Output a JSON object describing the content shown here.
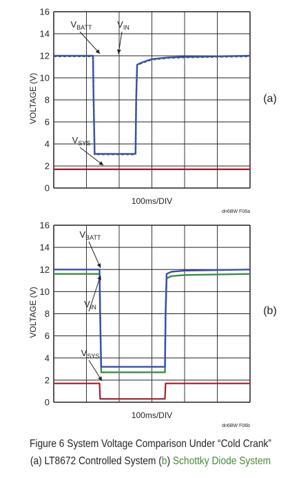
{
  "colors": {
    "vbatt": "#3b4ea8",
    "vin": "#3a8d3f",
    "vsys": "#a01f2a",
    "grid": "#231f20",
    "caption_green": "#4a8a3a"
  },
  "chart_data": [
    {
      "panel": "(a)",
      "type": "line",
      "xlabel": "100ms/DIV",
      "ylabel": "VOLTAGE (V)",
      "ylim": [
        0,
        16
      ],
      "yticks": [
        "0",
        "2",
        "4",
        "6",
        "8",
        "10",
        "12",
        "14",
        "16"
      ],
      "x_divisions": 6,
      "grid": true,
      "note": "dn6BW F06a",
      "annotations": [
        {
          "main": "V",
          "sub": "BATT",
          "target": "VBATT"
        },
        {
          "main": "V",
          "sub": "IN",
          "target": "VIN"
        },
        {
          "main": "V",
          "sub": "SYS",
          "target": "VSYS"
        }
      ],
      "series": [
        {
          "name": "VBATT",
          "x": [
            0,
            1.2,
            1.22,
            1.25,
            2.5,
            2.52,
            2.55,
            2.7,
            3.0,
            3.5,
            4.0,
            6.0
          ],
          "y": [
            12,
            12,
            8,
            3.1,
            3.1,
            8,
            11.2,
            11.4,
            11.7,
            11.85,
            11.9,
            12
          ]
        },
        {
          "name": "VIN",
          "x": [
            0,
            1.2,
            1.22,
            1.25,
            2.5,
            2.52,
            2.55,
            2.7,
            3.0,
            3.5,
            4.0,
            6.0
          ],
          "y": [
            11.95,
            11.95,
            8,
            3.05,
            3.05,
            8,
            11.15,
            11.35,
            11.65,
            11.8,
            11.85,
            11.95
          ]
        },
        {
          "name": "VSYS",
          "x": [
            0,
            6
          ],
          "y": [
            1.7,
            1.7
          ]
        }
      ]
    },
    {
      "panel": "(b)",
      "type": "line",
      "xlabel": "100ms/DIV",
      "ylabel": "VOLTAGE (V)",
      "ylim": [
        0,
        16
      ],
      "yticks": [
        "0",
        "2",
        "4",
        "6",
        "8",
        "10",
        "12",
        "14",
        "16"
      ],
      "x_divisions": 6,
      "grid": true,
      "note": "dn6BW F06b",
      "annotations": [
        {
          "main": "V",
          "sub": "BATT",
          "target": "VBATT"
        },
        {
          "main": "V",
          "sub": "IN",
          "target": "VIN"
        },
        {
          "main": "V",
          "sub": "SYS",
          "target": "VSYS"
        }
      ],
      "series": [
        {
          "name": "VBATT",
          "x": [
            0,
            1.4,
            1.42,
            1.45,
            3.4,
            3.42,
            3.45,
            3.6,
            4.0,
            6.0
          ],
          "y": [
            12,
            12,
            8,
            3.2,
            3.2,
            8,
            11.6,
            11.8,
            11.9,
            12
          ]
        },
        {
          "name": "VIN",
          "x": [
            0,
            1.4,
            1.42,
            1.45,
            3.4,
            3.42,
            3.45,
            3.6,
            4.0,
            6.0
          ],
          "y": [
            11.6,
            11.6,
            8,
            2.7,
            2.7,
            8,
            11.2,
            11.4,
            11.5,
            11.6
          ]
        },
        {
          "name": "VSYS",
          "x": [
            0,
            1.4,
            1.42,
            3.4,
            3.42,
            6.0
          ],
          "y": [
            1.7,
            1.7,
            0.3,
            0.3,
            1.7,
            1.7
          ]
        }
      ]
    }
  ],
  "panel_labels": [
    "(a)",
    "(b)"
  ],
  "caption": {
    "line1": "Figure 6 System Voltage Comparison Under “Cold Crank”",
    "line2_part1": "(a) LT8672 Controlled System (",
    "line2_b": "b",
    "line2_part2": ") ",
    "line2_green": "Schottky Diode System"
  }
}
